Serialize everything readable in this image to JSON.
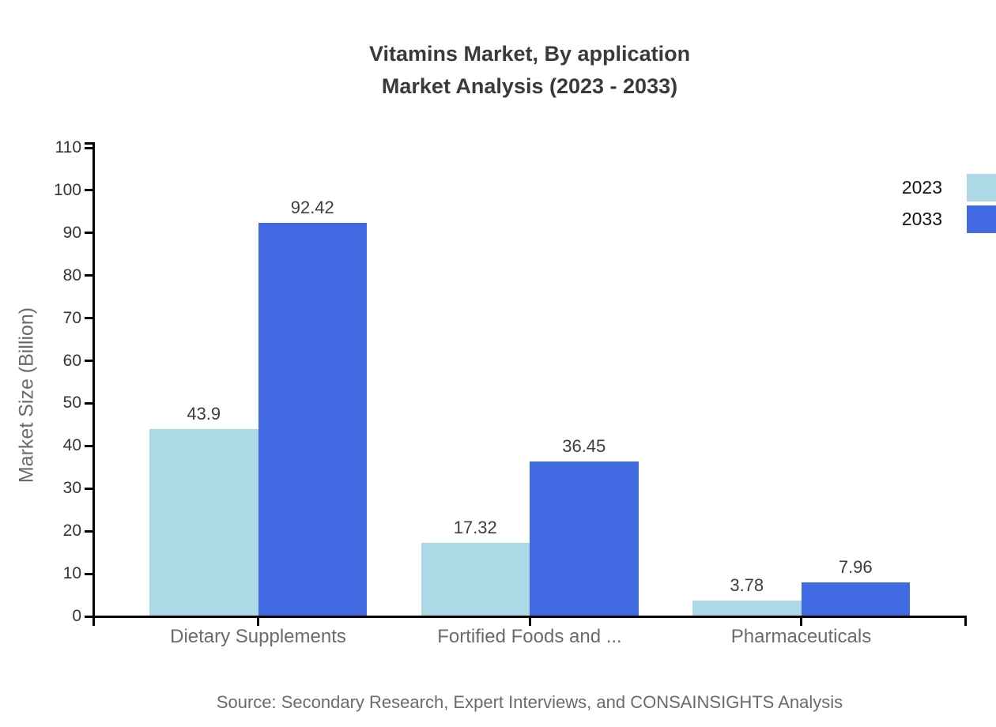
{
  "title": {
    "line1": "Vitamins Market, By application",
    "line2": "Market Analysis (2023 - 2033)"
  },
  "source_note": "Source: Secondary Research, Expert Interviews, and CONSAINSIGHTS Analysis",
  "colors": {
    "series_2023": "#ADD8E6",
    "series_2033": "#4169E1",
    "axis": "#000000",
    "title_text": "#3a3a3a",
    "muted_text": "#6b6b6b"
  },
  "chart_data": {
    "type": "bar",
    "title": "Vitamins Market, By application Market Analysis (2023 - 2033)",
    "title_lines": [
      "Vitamins Market, By application",
      "Market Analysis (2023 - 2033)"
    ],
    "categories": [
      "Dietary Supplements",
      "Fortified Foods and ...",
      "Pharmaceuticals"
    ],
    "series": [
      {
        "name": "2023",
        "color": "#ADD8E6",
        "values": [
          43.9,
          17.32,
          3.78
        ]
      },
      {
        "name": "2033",
        "color": "#4169E1",
        "values": [
          92.42,
          36.45,
          7.96
        ]
      }
    ],
    "xlabel": "",
    "ylabel": "Market Size (Billion)",
    "ylim": [
      0,
      110
    ],
    "ytick_step": 10,
    "grid": false,
    "legend_position": "top-right",
    "bar_value_labels": true,
    "source_note": "Source: Secondary Research, Expert Interviews, and CONSAINSIGHTS Analysis"
  }
}
